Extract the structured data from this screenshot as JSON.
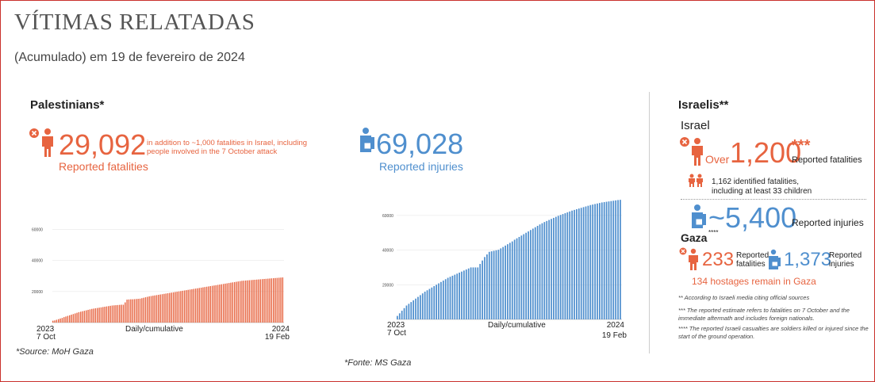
{
  "header": {
    "title": "VÍTIMAS RELATADAS",
    "subtitle": "(Acumulado) em 19 de fevereiro de 2024"
  },
  "palestinians": {
    "heading": "Palestinians*",
    "fatalities_value": "29,092",
    "fatalities_note": "in addition to ~1,000 fatalities in Israel, including people involved in the 7 October attack",
    "fatalities_label": "Reported fatalities",
    "injuries_value": "69,028",
    "injuries_label": "Reported injuries",
    "source": "*Source: MoH Gaza"
  },
  "israelis": {
    "heading": "Israelis**",
    "israel_label": "Israel",
    "over_label": "Over",
    "fatalities_value": "1,200",
    "fatalities_mark": "***",
    "fatalities_label": "Reported fatalities",
    "identified_note": "1,162 identified fatalities, including at least 33 children",
    "injuries_value": "~5,400",
    "injuries_label": "Reported injuries",
    "gaza_label": "Gaza",
    "gaza_mark": "****",
    "gaza_fatalities_value": "233",
    "gaza_fatalities_label": "Reported fatalities",
    "gaza_injuries_value": "1,373",
    "gaza_injuries_label": "Reported injuries",
    "hostages_text": "134 hostages remain in Gaza",
    "footnote1": "** According to Israeli media citing official sources",
    "footnote2": "*** The reported estimate refers to fatalities on 7 October and the immediate aftermath and includes foreign nationals.",
    "footnote3": "**** The reported Israeli casualties are soldiers killed or injured since the start of the ground operation."
  },
  "footer": {
    "source": "*Fonte: MS Gaza"
  },
  "colors": {
    "fatalities": "#e76440",
    "injuries": "#4f8fce"
  },
  "chart_data": [
    {
      "type": "bar",
      "series_label": "Daily/cumulative",
      "x_start_label": [
        "2023",
        "7 Oct"
      ],
      "x_end_label": [
        "2024",
        "19 Feb"
      ],
      "x_start": "2023-10-07",
      "x_end": "2024-02-19",
      "y_ticks": [
        20000,
        40000,
        60000
      ],
      "ylim": [
        0,
        70000
      ],
      "color": "#e76440",
      "values": [
        1200,
        1400,
        1800,
        2200,
        2600,
        3000,
        3500,
        3900,
        4300,
        4700,
        5100,
        5500,
        5900,
        6300,
        6700,
        7000,
        7300,
        7600,
        7900,
        8200,
        8500,
        8800,
        9000,
        9200,
        9400,
        9600,
        9800,
        10000,
        10200,
        10400,
        10600,
        10800,
        11000,
        11100,
        11200,
        11300,
        11400,
        11500,
        11500,
        13000,
        14800,
        14900,
        15000,
        15000,
        15100,
        15200,
        15300,
        15400,
        15700,
        16000,
        16300,
        16600,
        16900,
        17100,
        17300,
        17500,
        17700,
        17900,
        18100,
        18300,
        18500,
        18700,
        18900,
        19100,
        19300,
        19500,
        19700,
        19900,
        20100,
        20300,
        20500,
        20700,
        20900,
        21100,
        21300,
        21500,
        21700,
        21900,
        22100,
        22300,
        22500,
        22700,
        22900,
        23100,
        23300,
        23500,
        23700,
        23900,
        24100,
        24300,
        24500,
        24700,
        24900,
        25100,
        25300,
        25500,
        25700,
        25900,
        26100,
        26300,
        26500,
        26700,
        26900,
        27000,
        27100,
        27200,
        27300,
        27400,
        27500,
        27600,
        27700,
        27800,
        27900,
        28000,
        28100,
        28200,
        28300,
        28400,
        28500,
        28600,
        28700,
        28800,
        28900,
        29000,
        29092
      ]
    },
    {
      "type": "bar",
      "series_label": "Daily/cumulative",
      "x_start_label": [
        "2023",
        "7 Oct"
      ],
      "x_end_label": [
        "2024",
        "19 Feb"
      ],
      "x_start": "2023-10-07",
      "x_end": "2024-02-19",
      "y_ticks": [
        20000,
        40000,
        60000
      ],
      "ylim": [
        0,
        70000
      ],
      "color": "#4f8fce",
      "values": [
        2000,
        3500,
        5000,
        6500,
        8000,
        9000,
        10000,
        11000,
        12000,
        13000,
        14000,
        15000,
        16000,
        16800,
        17600,
        18400,
        19200,
        20000,
        20800,
        21600,
        22400,
        23200,
        24000,
        24600,
        25200,
        25800,
        26400,
        27000,
        27600,
        28200,
        28800,
        29400,
        30000,
        30000,
        30000,
        30000,
        32000,
        34000,
        36000,
        37500,
        39000,
        39300,
        39600,
        39900,
        40200,
        41000,
        41800,
        42600,
        43400,
        44200,
        45000,
        46000,
        46800,
        47600,
        48400,
        49200,
        50000,
        50800,
        51600,
        52400,
        53200,
        54000,
        54800,
        55500,
        56200,
        56800,
        57400,
        58000,
        58600,
        59200,
        59800,
        60300,
        60800,
        61300,
        61800,
        62300,
        62800,
        63200,
        63600,
        64000,
        64400,
        64800,
        65200,
        65600,
        66000,
        66300,
        66600,
        66900,
        67200,
        67500,
        67700,
        67900,
        68100,
        68300,
        68500,
        68700,
        68900,
        69028
      ]
    }
  ]
}
